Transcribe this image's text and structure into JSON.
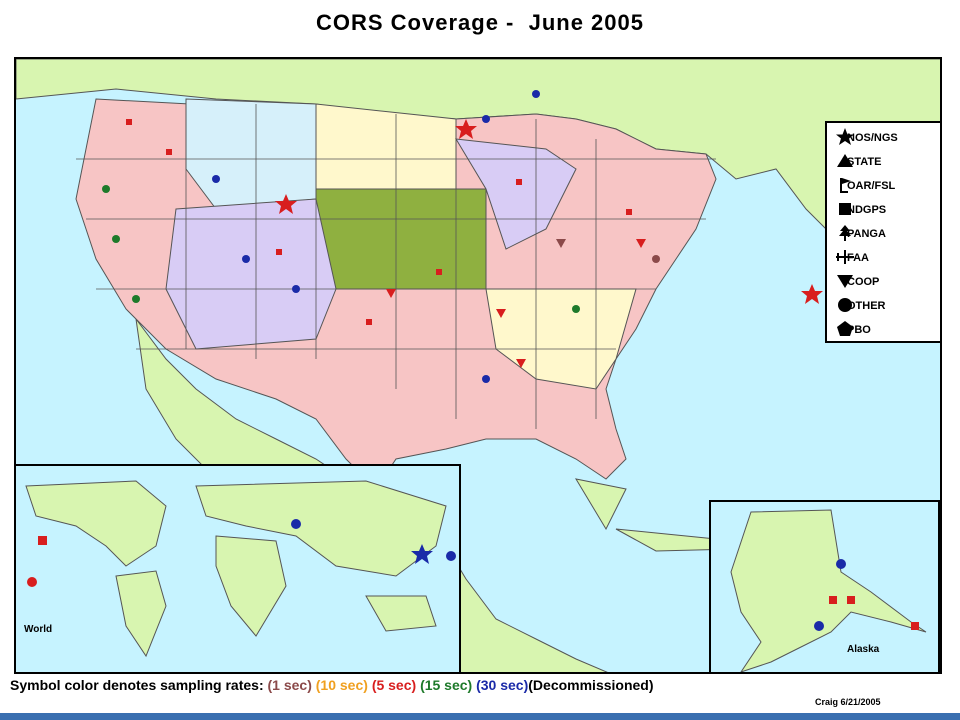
{
  "title": "CORS Coverage -  June 2005",
  "legend": {
    "items": [
      {
        "symbol": "star",
        "label": "NOS/NGS"
      },
      {
        "symbol": "triangle-up",
        "label": "STATE"
      },
      {
        "symbol": "flag",
        "label": "OAR/FSL"
      },
      {
        "symbol": "square",
        "label": "NDGPS"
      },
      {
        "symbol": "tree",
        "label": "PANGA"
      },
      {
        "symbol": "plane",
        "label": "FAA"
      },
      {
        "symbol": "triangle-down",
        "label": "COOP"
      },
      {
        "symbol": "circle",
        "label": "OTHER"
      },
      {
        "symbol": "pentagon",
        "label": "PBO"
      }
    ]
  },
  "insets": {
    "world_label": "World",
    "alaska_label": "Alaska"
  },
  "caption": {
    "prefix": "Symbol color denotes sampling rates: ",
    "rates": [
      {
        "text": "(1 sec)",
        "color": "#8b4a4a"
      },
      {
        "text": "(10 sec)",
        "color": "#f0a020"
      },
      {
        "text": "(5 sec)",
        "color": "#d81e1e"
      },
      {
        "text": "(15 sec)",
        "color": "#1e7a2a"
      },
      {
        "text": "(30 sec)",
        "color": "#1a2aa8"
      },
      {
        "text": "(Decommissioned)",
        "color": "#000000"
      }
    ]
  },
  "credit": "Craig 6/21/2005",
  "colors": {
    "ocean": "#c6f3ff",
    "land": "#d8f5b0",
    "state_pink": "#f7c5c5",
    "state_lavender": "#d8ccf5",
    "state_cream": "#fff8cc",
    "state_green": "#8fb040",
    "state_lightblue": "#d6f0fa"
  }
}
